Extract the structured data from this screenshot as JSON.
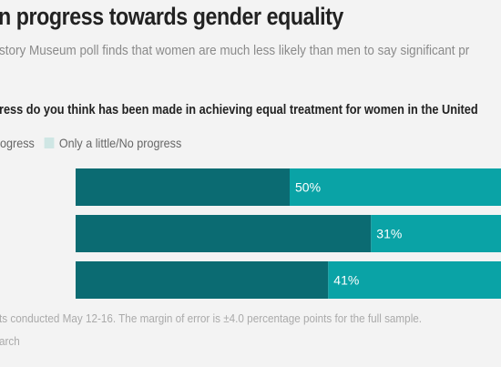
{
  "header": {
    "title": "n progress towards gender equality",
    "subtitle": "story Museum poll finds that women are much less likely than men to say significant pr"
  },
  "question": "ress do you think has been made in achieving equal treatment for women in the United",
  "legend": [
    {
      "label": "ogress",
      "color": "#0b6b72"
    },
    {
      "label": "Only a little/No progress",
      "color": "#cfe6e4"
    }
  ],
  "footer": {
    "note": "ts conducted May 12-16. The margin of error is ±4.0 percentage points for the full sample.",
    "source": "arch"
  },
  "colors": {
    "dark": "#0b6b72",
    "light": "#0aa3a6",
    "label": "#ffffff"
  },
  "chart_data": {
    "type": "bar",
    "orientation": "horizontal",
    "stacked": true,
    "categories": [
      "",
      "",
      ""
    ],
    "series": [
      {
        "name": "ogress",
        "values": [
          50,
          69,
          59
        ]
      },
      {
        "name": "Only a little/No progress",
        "values": [
          50,
          31,
          41
        ]
      }
    ],
    "data_labels": [
      "50%",
      "31%",
      "41%"
    ],
    "xlim": [
      0,
      100
    ]
  }
}
